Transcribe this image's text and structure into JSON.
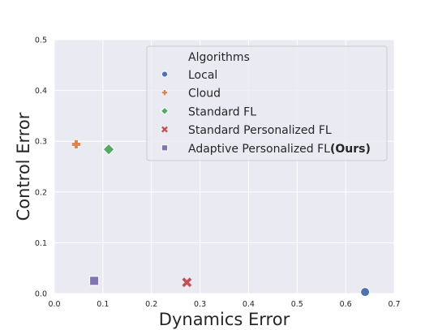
{
  "chart_data": {
    "type": "scatter",
    "xlabel": "Dynamics Error",
    "ylabel": "Control Error",
    "xlim": [
      0.0,
      0.7
    ],
    "ylim": [
      0.0,
      0.5
    ],
    "xticks": [
      "0.0",
      "0.1",
      "0.2",
      "0.3",
      "0.4",
      "0.5",
      "0.6",
      "0.7"
    ],
    "yticks": [
      "0.0",
      "0.1",
      "0.2",
      "0.3",
      "0.4",
      "0.5"
    ],
    "grid": true,
    "legend_position": "top-right",
    "legend_title": "Algorithms",
    "series": [
      {
        "name": "Local",
        "marker": "circle",
        "color": "#4c72b0",
        "x": 0.64,
        "y": 0.003
      },
      {
        "name": "Cloud",
        "marker": "plus",
        "color": "#dd8452",
        "x": 0.045,
        "y": 0.294
      },
      {
        "name": "Standard FL",
        "marker": "diamond",
        "color": "#55a868",
        "x": 0.112,
        "y": 0.284
      },
      {
        "name": "Standard Personalized FL",
        "marker": "x",
        "color": "#c44e52",
        "x": 0.273,
        "y": 0.022
      },
      {
        "name": "Adaptive Personalized FL",
        "name_bold_suffix": "(Ours)",
        "marker": "square",
        "color": "#8172b3",
        "x": 0.082,
        "y": 0.025
      }
    ]
  }
}
